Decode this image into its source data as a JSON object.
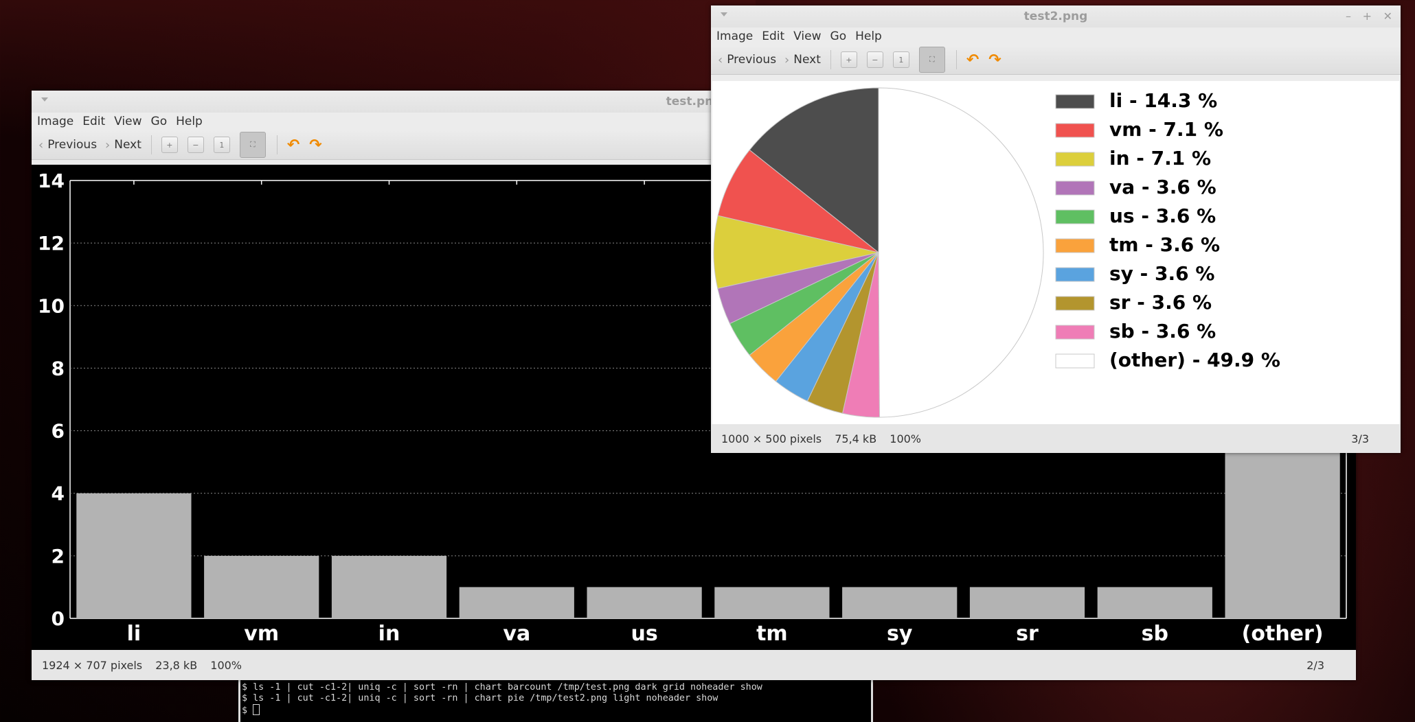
{
  "terminal": {
    "lines": [
      "$ ls -1 | cut -c1-2| uniq -c | sort -rn | chart barcount /tmp/test.png dark grid noheader show",
      "$ ls -1 | cut -c1-2| uniq -c | sort -rn | chart pie /tmp/test2.png light noheader show",
      "$ "
    ]
  },
  "window1": {
    "title": "test.png",
    "menu": [
      "Image",
      "Edit",
      "View",
      "Go",
      "Help"
    ],
    "toolbar": {
      "previous": "Previous",
      "next": "Next"
    },
    "status": {
      "dimensions": "1924 × 707 pixels",
      "size": "23,8 kB",
      "zoom": "100%",
      "position": "2/3"
    }
  },
  "window2": {
    "title": "test2.png",
    "menu": [
      "Image",
      "Edit",
      "View",
      "Go",
      "Help"
    ],
    "toolbar": {
      "previous": "Previous",
      "next": "Next"
    },
    "status": {
      "dimensions": "1000 × 500 pixels",
      "size": "75,4 kB",
      "zoom": "100%",
      "position": "3/3"
    }
  },
  "chart_data": [
    {
      "type": "bar",
      "categories": [
        "li",
        "vm",
        "in",
        "va",
        "us",
        "tm",
        "sy",
        "sr",
        "sb",
        "(other)"
      ],
      "values": [
        4,
        2,
        2,
        1,
        1,
        1,
        1,
        1,
        1,
        14
      ],
      "ylim": [
        0,
        14
      ],
      "yticks": [
        0,
        2,
        4,
        6,
        8,
        10,
        12,
        14
      ],
      "grid": true,
      "colors": {
        "background": "#000000",
        "bar": "#b3b3b3",
        "text": "#ffffff",
        "grid": "#8a8a8a"
      }
    },
    {
      "type": "pie",
      "slices": [
        {
          "label": "li - 14.3 %",
          "value": 14.3,
          "color": "#4d4d4d"
        },
        {
          "label": "vm - 7.1 %",
          "value": 7.1,
          "color": "#f0524f"
        },
        {
          "label": "in - 7.1 %",
          "value": 7.1,
          "color": "#dccf3c"
        },
        {
          "label": "va - 3.6 %",
          "value": 3.6,
          "color": "#b175b8"
        },
        {
          "label": "us - 3.6 %",
          "value": 3.6,
          "color": "#5fbf62"
        },
        {
          "label": "tm - 3.6 %",
          "value": 3.6,
          "color": "#faa23c"
        },
        {
          "label": "sy - 3.6 %",
          "value": 3.6,
          "color": "#5aa3df"
        },
        {
          "label": "sr - 3.6 %",
          "value": 3.6,
          "color": "#b3952e"
        },
        {
          "label": "sb - 3.6 %",
          "value": 3.6,
          "color": "#ef7db6"
        },
        {
          "label": "(other) - 49.9 %",
          "value": 49.9,
          "color": "#ffffff"
        }
      ],
      "legend": "right"
    }
  ]
}
